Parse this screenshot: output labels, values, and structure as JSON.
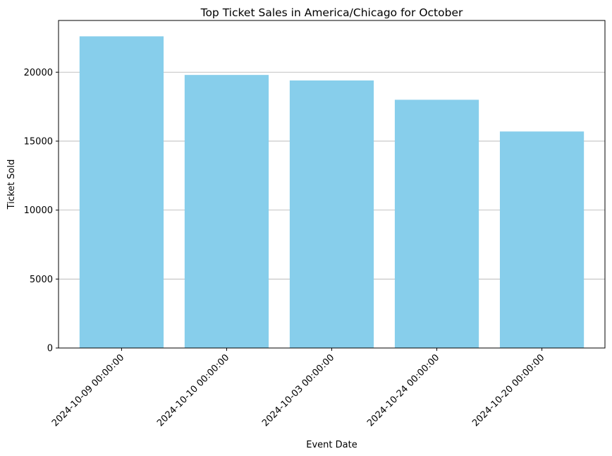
{
  "chart_data": {
    "type": "bar",
    "title": "Top Ticket Sales in America/Chicago for October",
    "xlabel": "Event Date",
    "ylabel": "Ticket Sold",
    "categories": [
      "2024-10-09 00:00:00",
      "2024-10-10 00:00:00",
      "2024-10-03 00:00:00",
      "2024-10-24 00:00:00",
      "2024-10-20 00:00:00"
    ],
    "values": [
      22600,
      19800,
      19400,
      18000,
      15700
    ],
    "ylim": [
      0,
      23750
    ],
    "yticks": [
      0,
      5000,
      10000,
      15000,
      20000
    ],
    "grid": "y",
    "colors": {
      "bar": "#87ceeb",
      "grid": "#b0b0b0",
      "axis": "#000000"
    }
  }
}
